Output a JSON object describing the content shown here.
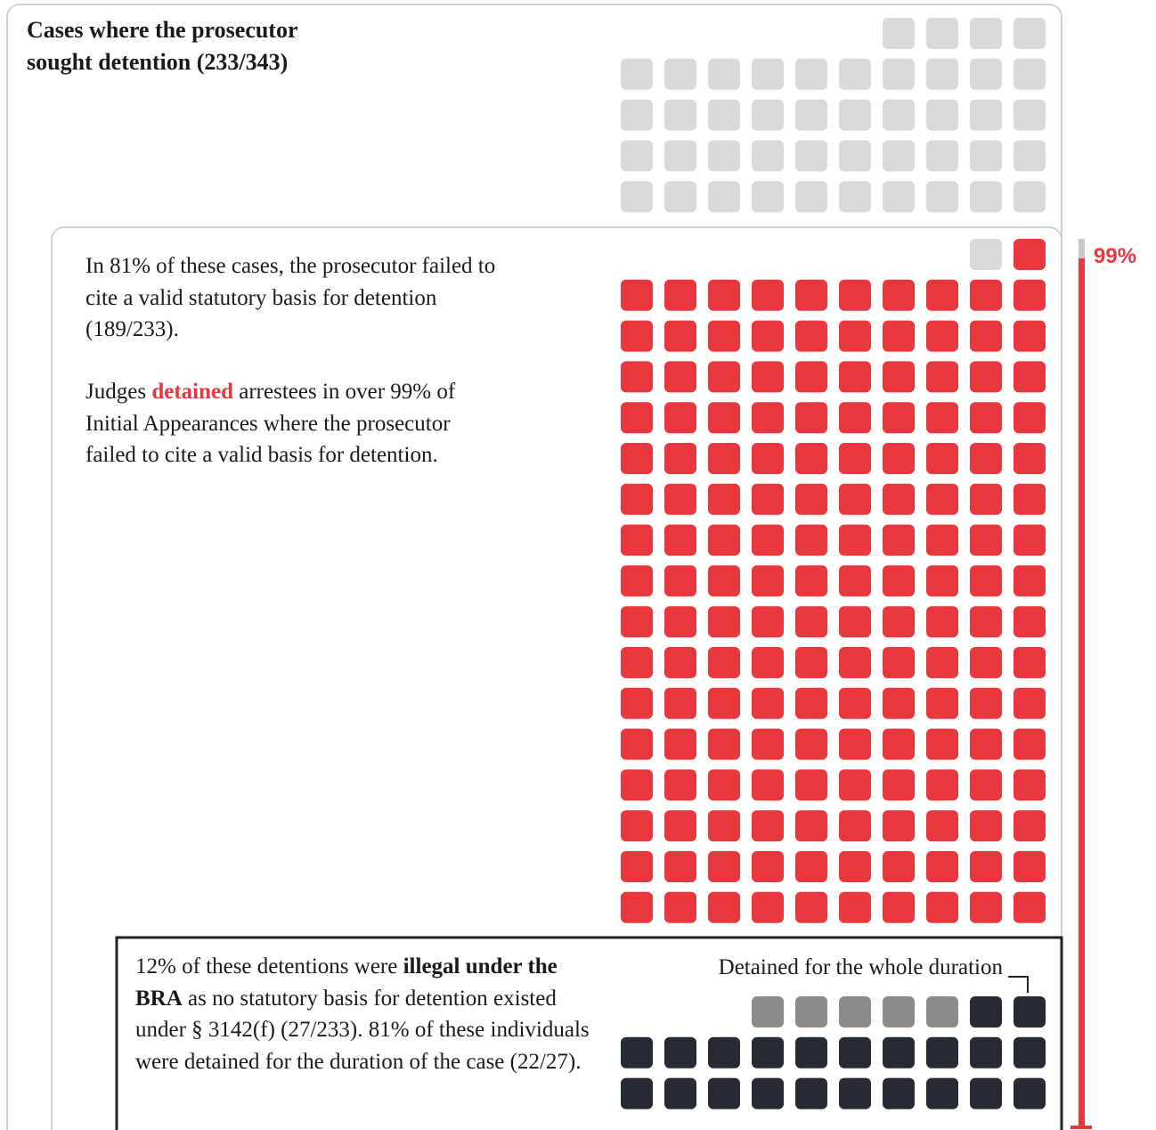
{
  "title": "Cases where the prosecutor sought detention (233/343)",
  "waffle": {
    "sections": [
      {
        "groups": [
          {
            "count": 44,
            "color": "#d9d9d9"
          }
        ]
      },
      {
        "groups": [
          {
            "count": 1,
            "color": "#d9d9d9"
          },
          {
            "count": 161,
            "color": "#e8383d"
          }
        ]
      },
      {
        "groups": [
          {
            "count": 5,
            "color": "#8c8c8c"
          },
          {
            "count": 22,
            "color": "#262a33"
          }
        ]
      }
    ]
  },
  "text1": "In 81% of these cases, the prosecutor failed to cite a valid statutory basis for detention (189/233).",
  "text2": [
    "Judges ",
    "detained",
    " arrestees in over 99% of Initial Appearances where the prosecutor failed to cite a valid basis for detention."
  ],
  "text3": [
    "12% of these detentions were ",
    "illegal under the BRA",
    " as no statutory basis for detention existed under § 3142(f) (27/233). 81% of these individuals were detained for the duration of the case (22/27)."
  ],
  "duration_label": "Detained for the whole duration",
  "bar_label": "99%"
}
